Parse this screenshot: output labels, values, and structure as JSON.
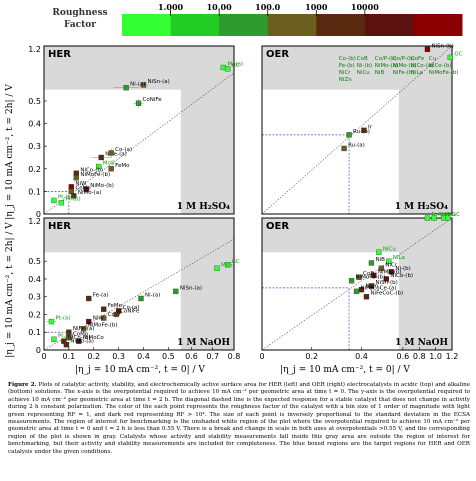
{
  "colorbar": {
    "title_line1": "Roughness",
    "title_line2": "Factor",
    "ticks": [
      "1.000",
      "10.00",
      "100.0",
      "1000",
      "10000"
    ],
    "colors": [
      "#33ff33",
      "#22cc22",
      "#2d9b2d",
      "#6b5e1f",
      "#5a2a10",
      "#5c1010",
      "#8a0000"
    ]
  },
  "axes": {
    "ylabel": "|η_j = 10 mA cm⁻², t = 2h| / V",
    "xlabel": "|η_j = 10 mA cm⁻², t = 0| / V",
    "left_ticks": [
      "0",
      "0.1",
      "0.2",
      "0.3",
      "0.4",
      "0.5",
      "0.6",
      "0.7",
      "0.8"
    ],
    "right_ticks": [
      "0",
      "0.2",
      "0.4",
      "0.6",
      "0.8",
      "1.0",
      "1.2"
    ],
    "y_top_tick": "1.2"
  },
  "chart_data": [
    {
      "type": "scatter",
      "title": "HER",
      "condition": "1 M H₂SO₄",
      "xlim": [
        0,
        0.8
      ],
      "ylim": [
        0,
        1.2
      ],
      "points": [
        {
          "label": "Mo(a)",
          "x": 0.75,
          "y": 0.88,
          "rf": 1,
          "xerr": 0,
          "yerr": 0.02
        },
        {
          "label": "GC",
          "x": 0.77,
          "y": 0.86,
          "rf": 1,
          "xerr": 0,
          "yerr": 0
        },
        {
          "label": "NiSn-(a)",
          "x": 0.4,
          "y": 0.62,
          "rf": 100,
          "xerr": 0.02,
          "yerr": 0.03
        },
        {
          "label": "Ni-(a)",
          "x": 0.33,
          "y": 0.58,
          "rf": 10,
          "xerr": 0.05,
          "yerr": 0.03
        },
        {
          "label": "CoNiFe",
          "x": 0.38,
          "y": 0.49,
          "rf": 10,
          "xerr": 0.02,
          "yerr": 0.02
        },
        {
          "label": "NiFe-(a)",
          "x": 0.23,
          "y": 0.25,
          "rf": 1000,
          "xerr": 0.04,
          "yerr": 0.01
        },
        {
          "label": "Co-(a)",
          "x": 0.27,
          "y": 0.27,
          "rf": 100,
          "xerr": 0.02,
          "yerr": 0.02
        },
        {
          "label": "MoS",
          "x": 0.22,
          "y": 0.21,
          "rf": 1,
          "xerr": 0.01,
          "yerr": 0.01
        },
        {
          "label": "FeMo",
          "x": 0.27,
          "y": 0.2,
          "rf": 100,
          "xerr": 0.01,
          "yerr": 0.01
        },
        {
          "label": "NiCo-(b)",
          "x": 0.13,
          "y": 0.18,
          "rf": 1000,
          "xerr": 0.01,
          "yerr": 0.01
        },
        {
          "label": "NiMoFe-(b)",
          "x": 0.13,
          "y": 0.16,
          "rf": 100,
          "xerr": 0.01,
          "yerr": 0.01
        },
        {
          "label": "NiW",
          "x": 0.11,
          "y": 0.12,
          "rf": 100000,
          "xerr": 0.01,
          "yerr": 0.01
        },
        {
          "label": "NiMo-(b)",
          "x": 0.17,
          "y": 0.11,
          "rf": 10000,
          "xerr": 0.01,
          "yerr": 0.01
        },
        {
          "label": "CoMo",
          "x": 0.11,
          "y": 0.1,
          "rf": 100,
          "xerr": 0.01,
          "yerr": 0.01
        },
        {
          "label": "NiMo-(a)",
          "x": 0.12,
          "y": 0.08,
          "rf": 1000,
          "xerr": 0.01,
          "yerr": 0.01
        },
        {
          "label": "Pt-(a)",
          "x": 0.04,
          "y": 0.06,
          "rf": 1,
          "xerr": 0.01,
          "yerr": 0.01
        },
        {
          "label": "Pt-(b)",
          "x": 0.07,
          "y": 0.05,
          "rf": 1,
          "xerr": 0.01,
          "yerr": 0.01
        }
      ]
    },
    {
      "type": "scatter",
      "title": "OER",
      "condition": "1 M H₂SO₄",
      "xlim": [
        0,
        1.2
      ],
      "ylim": [
        0,
        1.2
      ],
      "points": [
        {
          "label": "NiSn-(b)",
          "x": 0.9,
          "y": 1.15,
          "rf": 100000,
          "xerr": 0,
          "yerr": 0
        },
        {
          "label": "GC",
          "x": 1.18,
          "y": 1.03,
          "rf": 1,
          "xerr": 0,
          "yerr": 0
        },
        {
          "label": "Ru-(b)",
          "x": 0.35,
          "y": 0.35,
          "rf": 10,
          "xerr": 0.01,
          "yerr": 0.01
        },
        {
          "label": "Ru-(a)",
          "x": 0.33,
          "y": 0.29,
          "rf": 100,
          "xerr": 0.01,
          "yerr": 0.01
        },
        {
          "label": "Ir",
          "x": 0.41,
          "y": 0.37,
          "rf": 1000,
          "xerr": 0.01,
          "yerr": 0.01
        }
      ],
      "inset_labels": [
        "Co-(b)",
        "CoB",
        "Co/P-(b)",
        "Co/P-(b)",
        "CoFe",
        "Cu",
        "Fe-(b)",
        "Ni-(b)",
        "NiMo-(a)",
        "NiMo-(b)",
        "NiCo-(a)",
        "NiCo-(b)",
        "NiCr",
        "NiCu",
        "NiB",
        "NiFe-(b)",
        "NiLa",
        "NiMoFe-(b)",
        "NiZn"
      ]
    },
    {
      "type": "scatter",
      "title": "HER",
      "condition": "1 M NaOH",
      "xlim": [
        0,
        0.8
      ],
      "ylim": [
        0,
        1.2
      ],
      "points": [
        {
          "label": "GC",
          "x": 0.77,
          "y": 0.48,
          "rf": 1,
          "xerr": 0.01,
          "yerr": 0.01
        },
        {
          "label": "MoS",
          "x": 0.72,
          "y": 0.46,
          "rf": 1,
          "xerr": 0.01,
          "yerr": 0.01
        },
        {
          "label": "NiSn-(a)",
          "x": 0.53,
          "y": 0.33,
          "rf": 10,
          "xerr": 0.01,
          "yerr": 0.01
        },
        {
          "label": "Ni-(a)",
          "x": 0.39,
          "y": 0.29,
          "rf": 10,
          "xerr": 0.01,
          "yerr": 0.01
        },
        {
          "label": "Fe-(a)",
          "x": 0.18,
          "y": 0.29,
          "rf": 1000,
          "xerr": 0.01,
          "yerr": 0.01
        },
        {
          "label": "FeMo",
          "x": 0.24,
          "y": 0.23,
          "rf": 1000,
          "xerr": 0.01,
          "yerr": 0.01
        },
        {
          "label": "Co-(a)",
          "x": 0.3,
          "y": 0.22,
          "rf": 10000,
          "xerr": 0.01,
          "yerr": 0.01
        },
        {
          "label": "CoNiFe",
          "x": 0.29,
          "y": 0.2,
          "rf": 100,
          "xerr": 0.01,
          "yerr": 0.01
        },
        {
          "label": "CoW",
          "x": 0.24,
          "y": 0.18,
          "rf": 100,
          "xerr": 0.01,
          "yerr": 0.01
        },
        {
          "label": "Pt-(a)",
          "x": 0.03,
          "y": 0.16,
          "rf": 1,
          "xerr": 0.02,
          "yerr": 0.01
        },
        {
          "label": "NiW",
          "x": 0.18,
          "y": 0.16,
          "rf": 10000,
          "xerr": 0.01,
          "yerr": 0.01
        },
        {
          "label": "NiMoFe-(b)",
          "x": 0.16,
          "y": 0.12,
          "rf": 100,
          "xerr": 0.01,
          "yerr": 0.01
        },
        {
          "label": "NiFe-(a)",
          "x": 0.1,
          "y": 0.1,
          "rf": 1000,
          "xerr": 0.01,
          "yerr": 0.01
        },
        {
          "label": "Pt-(b)",
          "x": 0.04,
          "y": 0.06,
          "rf": 1,
          "xerr": 0.01,
          "yerr": 0.01
        },
        {
          "label": "CoMo",
          "x": 0.1,
          "y": 0.07,
          "rf": 100,
          "xerr": 0.01,
          "yerr": 0.01
        },
        {
          "label": "NiCo-(b)",
          "x": 0.08,
          "y": 0.05,
          "rf": 1000,
          "xerr": 0.01,
          "yerr": 0.01
        },
        {
          "label": "NiMoCo",
          "x": 0.14,
          "y": 0.05,
          "rf": 10000,
          "xerr": 0.01,
          "yerr": 0.01
        },
        {
          "label": "NiMo-(a)",
          "x": 0.09,
          "y": 0.03,
          "rf": 1000,
          "xerr": 0.01,
          "yerr": 0.01
        }
      ]
    },
    {
      "type": "scatter",
      "title": "OER",
      "condition": "1 M NaOH",
      "xlim": [
        0,
        1.2
      ],
      "ylim": [
        0,
        1.2
      ],
      "points": [
        {
          "label": "Fe-(b)",
          "x": 0.9,
          "y": 1.24,
          "rf": 1,
          "xerr": 0.01,
          "yerr": 0
        },
        {
          "label": "FeMn",
          "x": 0.98,
          "y": 1.2,
          "rf": 1,
          "xerr": 0.01,
          "yerr": 0
        },
        {
          "label": "Cu",
          "x": 1.1,
          "y": 1.24,
          "rf": 1,
          "xerr": 0.01,
          "yerr": 0
        },
        {
          "label": "GC",
          "x": 1.15,
          "y": 1.22,
          "rf": 1,
          "xerr": 0.01,
          "yerr": 0
        },
        {
          "label": "NiCu",
          "x": 0.47,
          "y": 0.55,
          "rf": 1,
          "xerr": 0.01,
          "yerr": 0.01
        },
        {
          "label": "NiLa",
          "x": 0.51,
          "y": 0.5,
          "rf": 1,
          "xerr": 0.01,
          "yerr": 0.01
        },
        {
          "label": "NiB",
          "x": 0.44,
          "y": 0.49,
          "rf": 10,
          "xerr": 0.01,
          "yerr": 0.01
        },
        {
          "label": "NiCr",
          "x": 0.48,
          "y": 0.46,
          "rf": 100,
          "xerr": 0.01,
          "yerr": 0.01
        },
        {
          "label": "Ni-(b)",
          "x": 0.52,
          "y": 0.44,
          "rf": 10000,
          "xerr": 0.01,
          "yerr": 0.01
        },
        {
          "label": "NiMo-(b)",
          "x": 0.45,
          "y": 0.42,
          "rf": 10000,
          "xerr": 0.01,
          "yerr": 0.01
        },
        {
          "label": "NiCo-(b)",
          "x": 0.5,
          "y": 0.4,
          "rf": 10000,
          "xerr": 0.01,
          "yerr": 0.01
        },
        {
          "label": "CoB",
          "x": 0.39,
          "y": 0.41,
          "rf": 100,
          "xerr": 0.01,
          "yerr": 0.01
        },
        {
          "label": "NiMoFe-(b)",
          "x": 0.36,
          "y": 0.39,
          "rf": 10,
          "xerr": 0.01,
          "yerr": 0.01
        },
        {
          "label": "NiSn-(b)",
          "x": 0.44,
          "y": 0.36,
          "rf": 1000,
          "xerr": 0.01,
          "yerr": 0.01
        },
        {
          "label": "NiZn",
          "x": 0.4,
          "y": 0.34,
          "rf": 1000,
          "xerr": 0.01,
          "yerr": 0.01
        },
        {
          "label": "NiFeCoCe-(a)",
          "x": 0.38,
          "y": 0.33,
          "rf": 10,
          "xerr": 0.01,
          "yerr": 0.01
        },
        {
          "label": "NiFeCoC-(b)",
          "x": 0.42,
          "y": 0.3,
          "rf": 1000,
          "xerr": 0.01,
          "yerr": 0.01
        }
      ]
    }
  ],
  "caption": {
    "label": "Figure 2.",
    "text": "Plots of catalytic activity, stability, and electrochemically active surface area for HER (left) and OER (right) electrocatalysts in acidic (top) and alkaline (bottom) solutions. The x-axis is the overpotential required to achieve 10 mA cm⁻² per geometric area at time t = 0. The y-axis is the overpotential required to achieve 10 mA cm⁻² per geometric area at time t = 2 h. The diagonal dashed line is the expected response for a stable catalyst that does not change in activity during 2 h constant polarization. The color of the each point represents the roughness factor of the catalyst with a bin size of 1 order of magnitude with light green representing RF = 1, and dark red representing RF > 10⁴. The size of each point is inversely proportional to the standard deviation in the ECSA measurements. The region of interest for benchmarking is the unshaded white region of the plot where the overpotential required to achieve 10 mA cm⁻² per geometric area at time t = 0 and t = 2 h is less than 0.55 V. There is a break and change in scale in both axes at overpotentials >0.55 V, and the corresponding region of the plot is shown in gray. Catalysts whose activity and stability measurements fall inside this gray area are outside the region of interest for benchmarking, but their activity and stability measurements are included for completeness. The blue boxed regions are the target regions for HER and OER catalysis under the given conditions."
  }
}
